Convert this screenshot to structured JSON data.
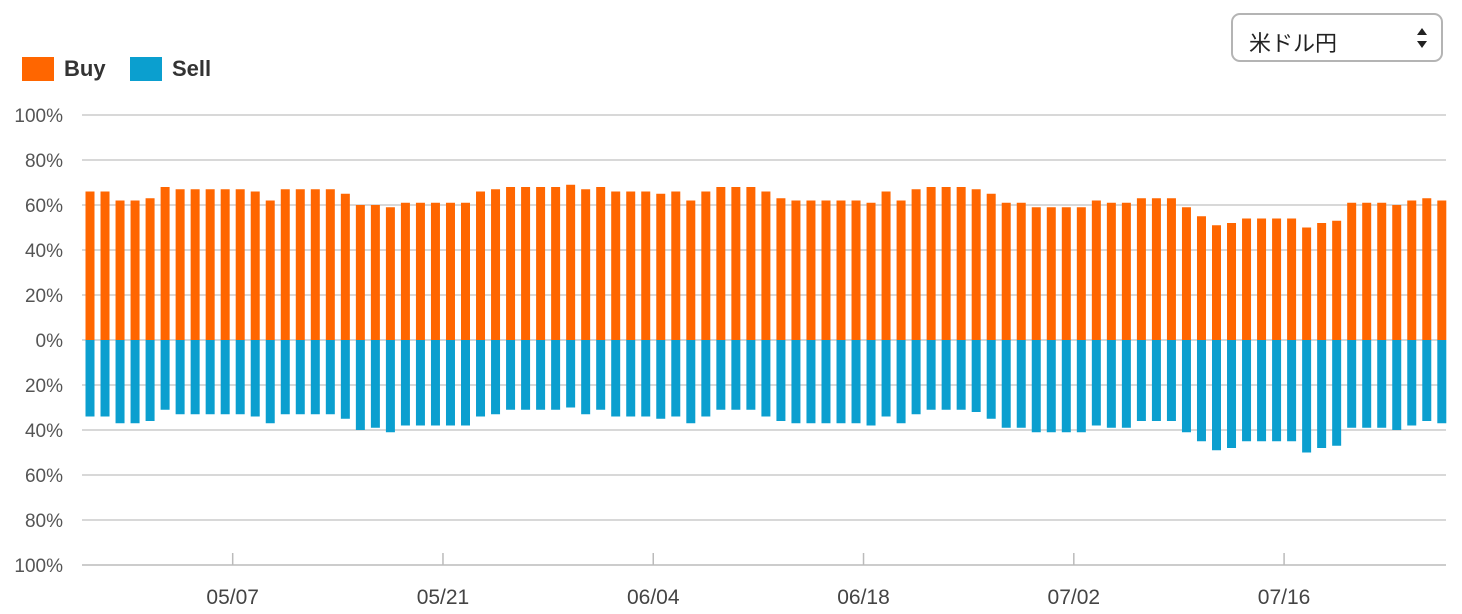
{
  "selector": {
    "value": "米ドル円"
  },
  "colors": {
    "buy": "#ff6600",
    "sell": "#0b9fcf",
    "grid": "#cccccc",
    "axis": "#bbbbbb"
  },
  "chart_data": {
    "type": "bar",
    "legend_position": "top-left",
    "grid": true,
    "series": [
      {
        "name": "Buy",
        "direction": "up",
        "values": [
          66,
          66,
          62,
          62,
          63,
          68,
          67,
          67,
          67,
          67,
          67,
          66,
          62,
          67,
          67,
          67,
          67,
          65,
          60,
          60,
          59,
          61,
          61,
          61,
          61,
          61,
          66,
          67,
          68,
          68,
          68,
          68,
          69,
          67,
          68,
          66,
          66,
          66,
          65,
          66,
          62,
          66,
          68,
          68,
          68,
          66,
          63,
          62,
          62,
          62,
          62,
          62,
          61,
          66,
          62,
          67,
          68,
          68,
          68,
          67,
          65,
          61,
          61,
          59,
          59,
          59,
          59,
          62,
          61,
          61,
          63,
          63,
          63,
          59,
          55,
          51,
          52,
          54,
          54,
          54,
          54,
          50,
          52,
          53,
          61,
          61,
          61,
          60,
          62,
          63,
          62
        ]
      },
      {
        "name": "Sell",
        "direction": "down",
        "values": [
          34,
          34,
          37,
          37,
          36,
          31,
          33,
          33,
          33,
          33,
          33,
          34,
          37,
          33,
          33,
          33,
          33,
          35,
          40,
          39,
          41,
          38,
          38,
          38,
          38,
          38,
          34,
          33,
          31,
          31,
          31,
          31,
          30,
          33,
          31,
          34,
          34,
          34,
          35,
          34,
          37,
          34,
          31,
          31,
          31,
          34,
          36,
          37,
          37,
          37,
          37,
          37,
          38,
          34,
          37,
          33,
          31,
          31,
          31,
          32,
          35,
          39,
          39,
          41,
          41,
          41,
          41,
          38,
          39,
          39,
          36,
          36,
          36,
          41,
          45,
          49,
          48,
          45,
          45,
          45,
          45,
          50,
          48,
          47,
          39,
          39,
          39,
          40,
          38,
          36,
          37
        ]
      }
    ],
    "y_ticks": [
      "100%",
      "80%",
      "60%",
      "40%",
      "20%",
      "0%",
      "20%",
      "40%",
      "60%",
      "80%",
      "100%"
    ],
    "ylim": [
      -100,
      100
    ],
    "x_tick_labels": [
      {
        "label": "05/07",
        "index": 10
      },
      {
        "label": "05/21",
        "index": 24
      },
      {
        "label": "06/04",
        "index": 38
      },
      {
        "label": "06/18",
        "index": 52
      },
      {
        "label": "07/02",
        "index": 66
      },
      {
        "label": "07/16",
        "index": 80
      }
    ]
  }
}
